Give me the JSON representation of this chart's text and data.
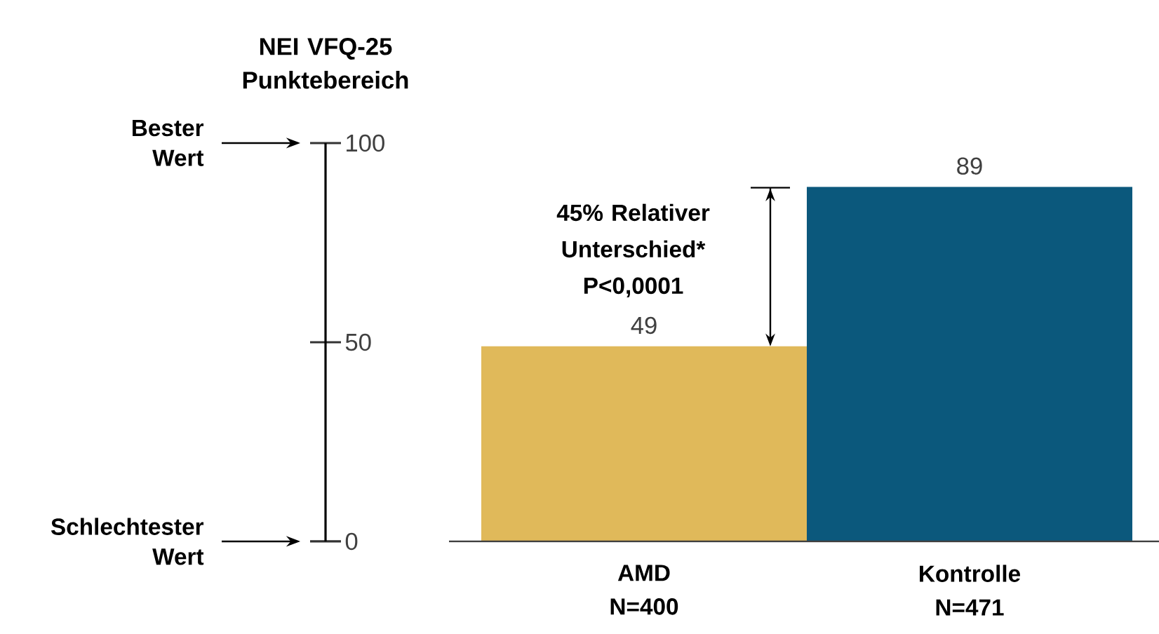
{
  "chart_data": {
    "type": "bar",
    "ylabel": "NEI VFQ-25 Punktebereich",
    "categories": [
      "AMD N=400",
      "Kontrolle N=471"
    ],
    "values": [
      49,
      89
    ],
    "colors": [
      "#e0b95a",
      "#0b587c"
    ],
    "data_labels": true,
    "ylim": [
      0,
      100
    ],
    "yticks": [
      0,
      50,
      100
    ],
    "annotations": [
      "Bester Wert",
      "Schlechtester Wert",
      "45% Relativer Unterschied* P<0,0001"
    ]
  }
}
